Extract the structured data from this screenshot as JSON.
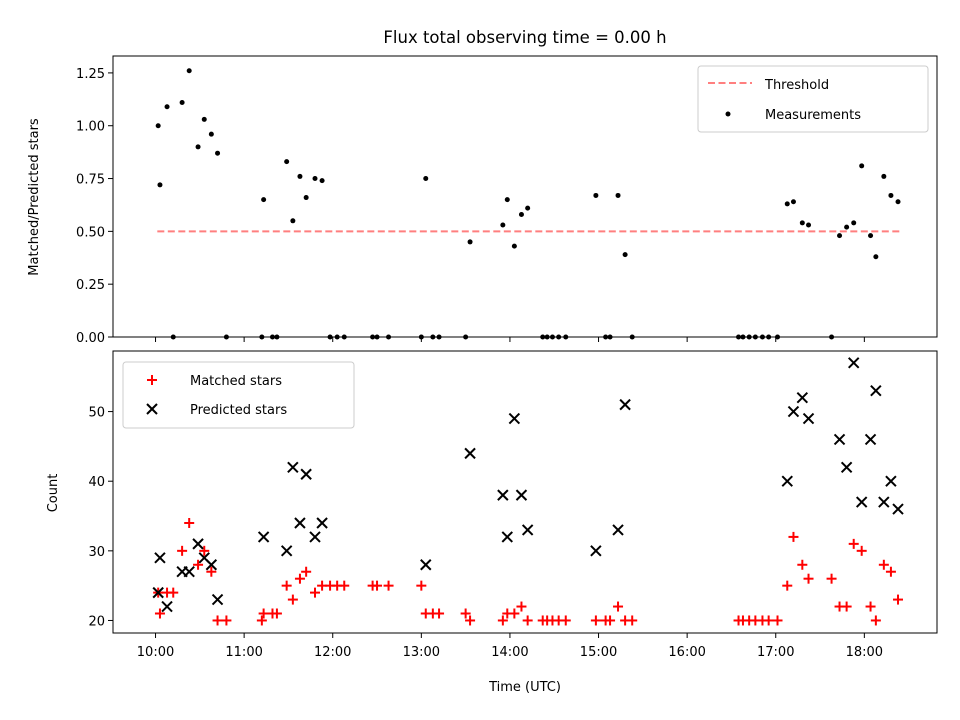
{
  "chart_data": [
    {
      "type": "scatter",
      "title": "Flux total observing time = 0.00 h",
      "xlabel": "",
      "ylabel": "Matched/Predicted stars",
      "xlim": [
        9.52,
        18.82
      ],
      "ylim": [
        0.0,
        1.33
      ],
      "y_ticks": [
        "0.00",
        "0.25",
        "0.50",
        "0.75",
        "1.00",
        "1.25"
      ],
      "x_tick_hours": [
        10,
        11,
        12,
        13,
        14,
        15,
        16,
        17,
        18
      ],
      "legend_position": "upper right",
      "threshold": {
        "name": "Threshold",
        "value": 0.5,
        "x_range": [
          10.02,
          18.4
        ],
        "color": "#ff7f7f"
      },
      "series": [
        {
          "name": "Measurements",
          "color": "#000000",
          "points": [
            [
              10.03,
              1.0
            ],
            [
              10.05,
              0.72
            ],
            [
              10.13,
              1.09
            ],
            [
              10.2,
              0.0
            ],
            [
              10.3,
              1.11
            ],
            [
              10.38,
              1.26
            ],
            [
              10.48,
              0.9
            ],
            [
              10.55,
              1.03
            ],
            [
              10.63,
              0.96
            ],
            [
              10.7,
              0.87
            ],
            [
              10.8,
              0.0
            ],
            [
              11.2,
              0.0
            ],
            [
              11.22,
              0.65
            ],
            [
              11.32,
              0.0
            ],
            [
              11.37,
              0.0
            ],
            [
              11.48,
              0.83
            ],
            [
              11.55,
              0.55
            ],
            [
              11.63,
              0.76
            ],
            [
              11.7,
              0.66
            ],
            [
              11.8,
              0.75
            ],
            [
              11.88,
              0.74
            ],
            [
              11.97,
              0.0
            ],
            [
              12.05,
              0.0
            ],
            [
              12.13,
              0.0
            ],
            [
              12.45,
              0.0
            ],
            [
              12.5,
              0.0
            ],
            [
              12.63,
              0.0
            ],
            [
              13.0,
              0.0
            ],
            [
              13.05,
              0.75
            ],
            [
              13.13,
              0.0
            ],
            [
              13.2,
              0.0
            ],
            [
              13.5,
              0.0
            ],
            [
              13.55,
              0.45
            ],
            [
              13.92,
              0.53
            ],
            [
              13.97,
              0.65
            ],
            [
              14.05,
              0.43
            ],
            [
              14.13,
              0.58
            ],
            [
              14.2,
              0.61
            ],
            [
              14.37,
              0.0
            ],
            [
              14.42,
              0.0
            ],
            [
              14.48,
              0.0
            ],
            [
              14.55,
              0.0
            ],
            [
              14.63,
              0.0
            ],
            [
              14.97,
              0.67
            ],
            [
              15.08,
              0.0
            ],
            [
              15.13,
              0.0
            ],
            [
              15.22,
              0.67
            ],
            [
              15.3,
              0.39
            ],
            [
              15.38,
              0.0
            ],
            [
              16.58,
              0.0
            ],
            [
              16.63,
              0.0
            ],
            [
              16.7,
              0.0
            ],
            [
              16.77,
              0.0
            ],
            [
              16.85,
              0.0
            ],
            [
              16.92,
              0.0
            ],
            [
              17.02,
              0.0
            ],
            [
              17.13,
              0.63
            ],
            [
              17.2,
              0.64
            ],
            [
              17.3,
              0.54
            ],
            [
              17.37,
              0.53
            ],
            [
              17.63,
              0.0
            ],
            [
              17.72,
              0.48
            ],
            [
              17.8,
              0.52
            ],
            [
              17.88,
              0.54
            ],
            [
              17.97,
              0.81
            ],
            [
              18.07,
              0.48
            ],
            [
              18.13,
              0.38
            ],
            [
              18.22,
              0.76
            ],
            [
              18.3,
              0.67
            ],
            [
              18.38,
              0.64
            ]
          ]
        }
      ]
    },
    {
      "type": "scatter",
      "title": "",
      "xlabel": "Time (UTC)",
      "ylabel": "Count",
      "xlim": [
        9.52,
        18.82
      ],
      "ylim": [
        18.2,
        58.7
      ],
      "y_ticks": [
        "20",
        "30",
        "40",
        "50"
      ],
      "x_tick_labels": [
        "10:00",
        "11:00",
        "12:00",
        "13:00",
        "14:00",
        "15:00",
        "16:00",
        "17:00",
        "18:00"
      ],
      "x_tick_hours": [
        10,
        11,
        12,
        13,
        14,
        15,
        16,
        17,
        18
      ],
      "legend_position": "upper left",
      "series": [
        {
          "name": "Matched stars",
          "marker": "+",
          "color": "#ff0000",
          "points": [
            [
              10.03,
              24
            ],
            [
              10.05,
              21
            ],
            [
              10.13,
              24
            ],
            [
              10.2,
              24
            ],
            [
              10.3,
              30
            ],
            [
              10.38,
              34
            ],
            [
              10.48,
              28
            ],
            [
              10.55,
              30
            ],
            [
              10.63,
              27
            ],
            [
              10.7,
              20
            ],
            [
              10.8,
              20
            ],
            [
              11.2,
              20
            ],
            [
              11.22,
              21
            ],
            [
              11.32,
              21
            ],
            [
              11.37,
              21
            ],
            [
              11.48,
              25
            ],
            [
              11.55,
              23
            ],
            [
              11.63,
              26
            ],
            [
              11.7,
              27
            ],
            [
              11.8,
              24
            ],
            [
              11.88,
              25
            ],
            [
              11.97,
              25
            ],
            [
              12.05,
              25
            ],
            [
              12.13,
              25
            ],
            [
              12.45,
              25
            ],
            [
              12.5,
              25
            ],
            [
              12.63,
              25
            ],
            [
              13.0,
              25
            ],
            [
              13.05,
              21
            ],
            [
              13.13,
              21
            ],
            [
              13.2,
              21
            ],
            [
              13.5,
              21
            ],
            [
              13.55,
              20
            ],
            [
              13.92,
              20
            ],
            [
              13.97,
              21
            ],
            [
              14.05,
              21
            ],
            [
              14.13,
              22
            ],
            [
              14.2,
              20
            ],
            [
              14.37,
              20
            ],
            [
              14.42,
              20
            ],
            [
              14.48,
              20
            ],
            [
              14.55,
              20
            ],
            [
              14.63,
              20
            ],
            [
              14.97,
              20
            ],
            [
              15.08,
              20
            ],
            [
              15.13,
              20
            ],
            [
              15.22,
              22
            ],
            [
              15.3,
              20
            ],
            [
              15.38,
              20
            ],
            [
              16.58,
              20
            ],
            [
              16.63,
              20
            ],
            [
              16.7,
              20
            ],
            [
              16.77,
              20
            ],
            [
              16.85,
              20
            ],
            [
              16.92,
              20
            ],
            [
              17.02,
              20
            ],
            [
              17.13,
              25
            ],
            [
              17.2,
              32
            ],
            [
              17.3,
              28
            ],
            [
              17.37,
              26
            ],
            [
              17.63,
              26
            ],
            [
              17.72,
              22
            ],
            [
              17.8,
              22
            ],
            [
              17.88,
              31
            ],
            [
              17.97,
              30
            ],
            [
              18.07,
              22
            ],
            [
              18.13,
              20
            ],
            [
              18.22,
              28
            ],
            [
              18.3,
              27
            ],
            [
              18.38,
              23
            ]
          ]
        },
        {
          "name": "Predicted stars",
          "marker": "x",
          "color": "#000000",
          "points": [
            [
              10.03,
              24
            ],
            [
              10.05,
              29
            ],
            [
              10.13,
              22
            ],
            [
              10.3,
              27
            ],
            [
              10.38,
              27
            ],
            [
              10.48,
              31
            ],
            [
              10.55,
              29
            ],
            [
              10.63,
              28
            ],
            [
              10.7,
              23
            ],
            [
              11.22,
              32
            ],
            [
              11.48,
              30
            ],
            [
              11.55,
              42
            ],
            [
              11.63,
              34
            ],
            [
              11.7,
              41
            ],
            [
              11.8,
              32
            ],
            [
              11.88,
              34
            ],
            [
              13.05,
              28
            ],
            [
              13.55,
              44
            ],
            [
              13.92,
              38
            ],
            [
              13.97,
              32
            ],
            [
              14.05,
              49
            ],
            [
              14.13,
              38
            ],
            [
              14.2,
              33
            ],
            [
              14.97,
              30
            ],
            [
              15.22,
              33
            ],
            [
              15.3,
              51
            ],
            [
              17.13,
              40
            ],
            [
              17.2,
              50
            ],
            [
              17.3,
              52
            ],
            [
              17.37,
              49
            ],
            [
              17.72,
              46
            ],
            [
              17.8,
              42
            ],
            [
              17.88,
              57
            ],
            [
              17.97,
              37
            ],
            [
              18.07,
              46
            ],
            [
              18.13,
              53
            ],
            [
              18.22,
              37
            ],
            [
              18.3,
              40
            ],
            [
              18.38,
              36
            ]
          ]
        }
      ]
    }
  ]
}
